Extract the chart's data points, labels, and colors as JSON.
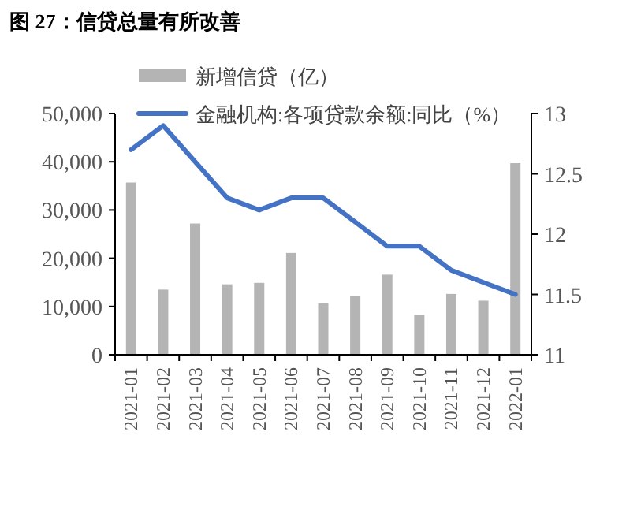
{
  "chart_data": {
    "type": "bar",
    "title": "图 27：信贷总量有所改善",
    "categories": [
      "2021-01",
      "2021-02",
      "2021-03",
      "2021-04",
      "2021-05",
      "2021-06",
      "2021-07",
      "2021-08",
      "2021-09",
      "2021-10",
      "2021-11",
      "2021-12",
      "2022-01"
    ],
    "series": [
      {
        "name": "新增信贷（亿）",
        "color": "#b4b4b4",
        "values": [
          35700,
          13500,
          27200,
          14600,
          14900,
          21100,
          10700,
          12100,
          16600,
          8200,
          12600,
          11200,
          39700
        ]
      },
      {
        "name": "金融机构:各项贷款余额:同比（%）",
        "type": "line",
        "axis": "y2",
        "color": "#4472c4",
        "values": [
          12.7,
          12.9,
          12.6,
          12.3,
          12.2,
          12.3,
          12.3,
          12.1,
          11.9,
          11.9,
          11.7,
          11.6,
          11.5
        ]
      }
    ],
    "ylim": [
      0,
      50000
    ],
    "yticks": [
      {
        "value": 0,
        "label": "0"
      },
      {
        "value": 10000,
        "label": "10,000"
      },
      {
        "value": 20000,
        "label": "20,000"
      },
      {
        "value": 30000,
        "label": "30,000"
      },
      {
        "value": 40000,
        "label": "40,000"
      },
      {
        "value": 50000,
        "label": "50,000"
      }
    ],
    "y2lim": [
      11,
      13
    ],
    "y2ticks": [
      11,
      11.5,
      12,
      12.5,
      13
    ],
    "legend": "top",
    "grid": false,
    "marker": "none",
    "line_style": "solid"
  }
}
